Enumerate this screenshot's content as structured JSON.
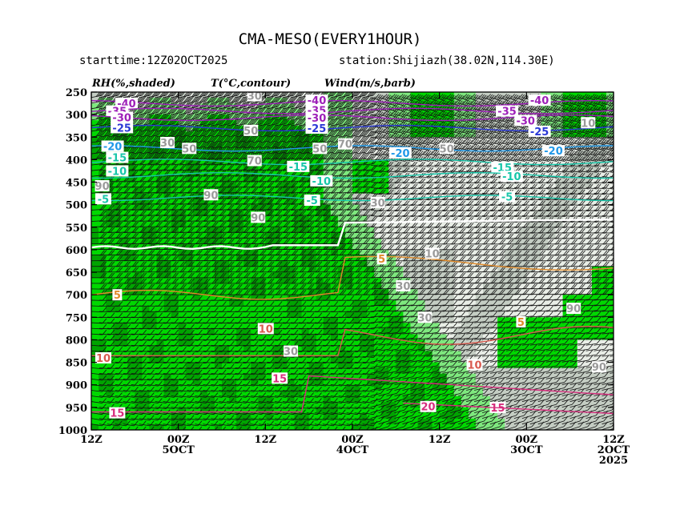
{
  "title": "CMA-MESO(EVERY1HOUR)",
  "starttime": "starttime:12Z02OCT2025",
  "station": "station:Shijiazh(38.02N,114.30E)",
  "chart_data": {
    "type": "heatmap",
    "headers": {
      "rh": "RH(%,shaded)",
      "temp": "T(°C,contour)",
      "wind": "Wind(m/s,barb)"
    },
    "y_axis": {
      "levels": [
        "250",
        "300",
        "350",
        "400",
        "450",
        "500",
        "550",
        "600",
        "650",
        "700",
        "750",
        "800",
        "850",
        "900",
        "950",
        "1000"
      ],
      "inverted": true,
      "range": [
        250,
        1000
      ]
    },
    "x_axis": {
      "direction": "time decreasing to the right",
      "ticks": [
        {
          "line1": "12Z",
          "line2": "",
          "line3": ""
        },
        {
          "line1": "00Z",
          "line2": "5OCT",
          "line3": ""
        },
        {
          "line1": "12Z",
          "line2": "",
          "line3": ""
        },
        {
          "line1": "00Z",
          "line2": "4OCT",
          "line3": ""
        },
        {
          "line1": "12Z",
          "line2": "",
          "line3": ""
        },
        {
          "line1": "00Z",
          "line2": "3OCT",
          "line3": ""
        },
        {
          "line1": "12Z",
          "line2": "2OCT",
          "line3": "2025"
        }
      ],
      "range_hours": [
        0,
        72
      ]
    },
    "rh_shading": {
      "levels": [
        30,
        50,
        70,
        90
      ],
      "colors": [
        "#e8ede6",
        "#c4cdc3",
        "#7ee87e",
        "#00d800",
        "#00a400"
      ]
    },
    "temperature_contours": [
      {
        "label": "-40",
        "color": "#9d1fb8",
        "labels": [
          [
            27,
            275
          ],
          [
            68,
            268
          ],
          [
            116,
            268
          ]
        ]
      },
      {
        "label": "-35",
        "color": "#9d1fb8",
        "labels": [
          [
            25,
            292
          ],
          [
            68,
            290
          ],
          [
            109,
            292
          ]
        ]
      },
      {
        "label": "-30",
        "color": "#9d1fb8",
        "labels": [
          [
            26,
            306
          ],
          [
            68,
            307
          ],
          [
            113,
            313
          ]
        ]
      },
      {
        "label": "-25",
        "color": "#2a38d6",
        "labels": [
          [
            26,
            329
          ],
          [
            68,
            330
          ],
          [
            116,
            337
          ]
        ]
      },
      {
        "label": "-20",
        "color": "#2098e8",
        "labels": [
          [
            24,
            370
          ],
          [
            86,
            385
          ],
          [
            119,
            380
          ]
        ]
      },
      {
        "label": "-15",
        "color": "#17c6a9",
        "labels": [
          [
            25,
            395
          ],
          [
            64,
            415
          ],
          [
            108,
            417
          ]
        ]
      },
      {
        "label": "-10",
        "color": "#17c6a9",
        "labels": [
          [
            25,
            425
          ],
          [
            69,
            447
          ],
          [
            110,
            437
          ]
        ]
      },
      {
        "label": "-5",
        "color": "#17c6a9",
        "labels": [
          [
            22,
            487
          ],
          [
            67,
            490
          ],
          [
            109,
            482
          ]
        ]
      },
      {
        "label": "0",
        "color": "#ffffff",
        "labels": []
      },
      {
        "label": "5",
        "color": "#e08a2a",
        "labels": [
          [
            25,
            700
          ],
          [
            82,
            620
          ],
          [
            112,
            760
          ]
        ]
      },
      {
        "label": "10",
        "color": "#d95a4f",
        "labels": [
          [
            22,
            840
          ],
          [
            57,
            775
          ],
          [
            102,
            855
          ]
        ]
      },
      {
        "label": "15",
        "color": "#d62d7d",
        "labels": [
          [
            25,
            962
          ],
          [
            60,
            885
          ],
          [
            107,
            950
          ]
        ]
      },
      {
        "label": "20",
        "color": "#d62d7d",
        "labels": [
          [
            92,
            948
          ]
        ]
      }
    ],
    "rh_labels": [
      {
        "text": "90",
        "hour": 3,
        "p": 458
      },
      {
        "text": "90",
        "hour": 33,
        "p": 478
      },
      {
        "text": "90",
        "hour": 46,
        "p": 528
      },
      {
        "text": "90",
        "hour": 133,
        "p": 730
      },
      {
        "text": "90",
        "hour": 140,
        "p": 860
      },
      {
        "text": "70",
        "hour": 45,
        "p": 402
      },
      {
        "text": "70",
        "hour": 70,
        "p": 365
      },
      {
        "text": "50",
        "hour": 27,
        "p": 375
      },
      {
        "text": "50",
        "hour": 44,
        "p": 335
      },
      {
        "text": "50",
        "hour": 63,
        "p": 375
      },
      {
        "text": "50",
        "hour": 98,
        "p": 375
      },
      {
        "text": "30",
        "hour": 21,
        "p": 362
      },
      {
        "text": "30",
        "hour": 45,
        "p": 258
      },
      {
        "text": "30",
        "hour": 79,
        "p": 495
      },
      {
        "text": "30",
        "hour": 86,
        "p": 680
      },
      {
        "text": "30",
        "hour": 92,
        "p": 750
      },
      {
        "text": "30",
        "hour": 55,
        "p": 825
      },
      {
        "text": "10",
        "hour": 94,
        "p": 608
      },
      {
        "text": "10",
        "hour": 137,
        "p": 318
      }
    ]
  }
}
